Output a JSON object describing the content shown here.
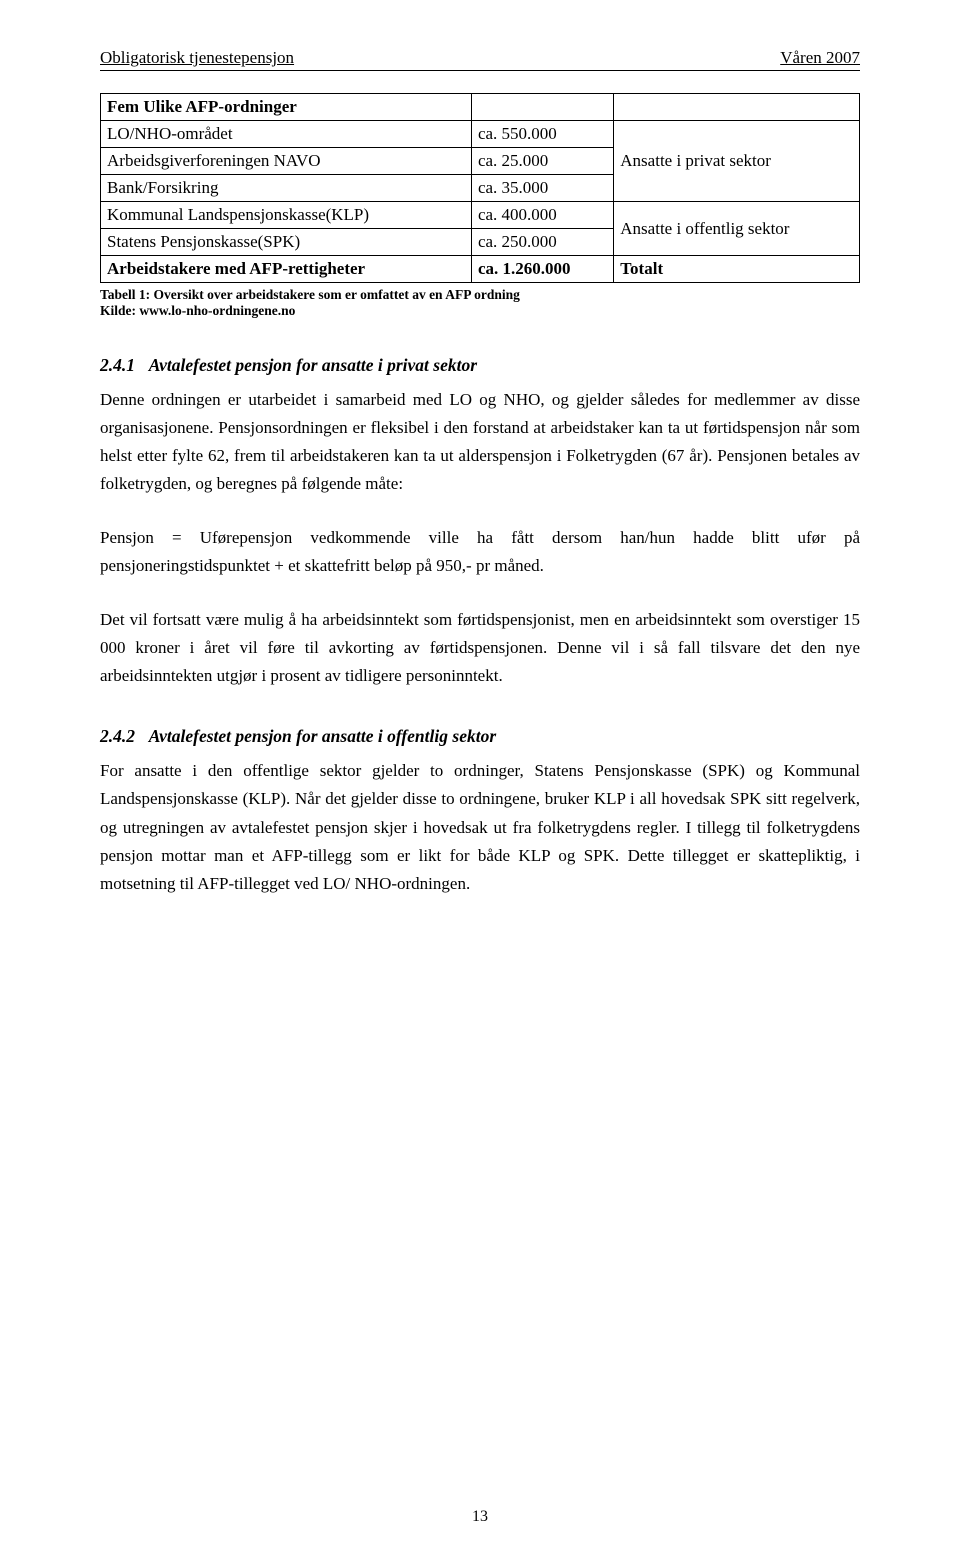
{
  "header": {
    "left": "Obligatorisk tjenestepensjon",
    "right": "Våren 2007"
  },
  "table": {
    "title": "Fem Ulike AFP-ordninger",
    "rows": [
      {
        "label": "LO/NHO-området",
        "value": "ca. 550.000"
      },
      {
        "label": "Arbeidsgiverforeningen NAVO",
        "value": "ca. 25.000"
      },
      {
        "label": "Bank/Forsikring",
        "value": "ca. 35.000"
      },
      {
        "label": "Kommunal Landspensjonskasse(KLP)",
        "value": "ca. 400.000"
      },
      {
        "label": "Statens Pensjonskasse(SPK)",
        "value": "ca. 250.000"
      }
    ],
    "group_privat": "Ansatte i privat sektor",
    "group_offentlig": "Ansatte i offentlig sektor",
    "total_label": "Arbeidstakere med AFP-rettigheter",
    "total_value": "ca. 1.260.000",
    "total_right": "Totalt",
    "caption": "Tabell 1: Oversikt over arbeidstakere som er omfattet av en AFP ordning",
    "source": "Kilde: www.lo-nho-ordningene.no"
  },
  "section1": {
    "num": "2.4.1",
    "title": "Avtalefestet pensjon for ansatte i privat sektor",
    "p1": "Denne ordningen er utarbeidet i samarbeid med LO og NHO, og gjelder således for medlemmer av disse organisasjonene. Pensjonsordningen er fleksibel i den forstand at arbeidstaker kan ta ut førtidspensjon når som helst etter fylte 62, frem til arbeidstakeren kan ta ut alderspensjon i Folketrygden (67 år). Pensjonen betales av folketrygden, og beregnes på følgende måte:",
    "p2": "Pensjon = Uførepensjon vedkommende ville ha fått dersom han/hun hadde blitt ufør på pensjoneringstidspunktet + et skattefritt beløp på 950,- pr måned.",
    "p3": "Det vil fortsatt være mulig å ha arbeidsinntekt som førtidspensjonist, men en arbeidsinntekt som overstiger 15 000 kroner i året vil føre til avkorting av førtidspensjonen. Denne vil i så fall tilsvare det den nye arbeidsinntekten utgjør i prosent av tidligere personinntekt."
  },
  "section2": {
    "num": "2.4.2",
    "title": "Avtalefestet pensjon for ansatte i offentlig sektor",
    "p1": "For ansatte i den offentlige sektor gjelder to ordninger, Statens Pensjonskasse (SPK) og Kommunal Landspensjonskasse (KLP). Når det gjelder disse to ordningene, bruker KLP i all hovedsak SPK sitt regelverk, og utregningen av avtalefestet pensjon skjer i hovedsak ut fra folketrygdens regler. I tillegg til folketrygdens pensjon mottar man et AFP-tillegg som er likt for både KLP og SPK. Dette tillegget er skattepliktig, i motsetning til AFP-tillegget ved LO/ NHO-ordningen."
  },
  "page_number": "13"
}
